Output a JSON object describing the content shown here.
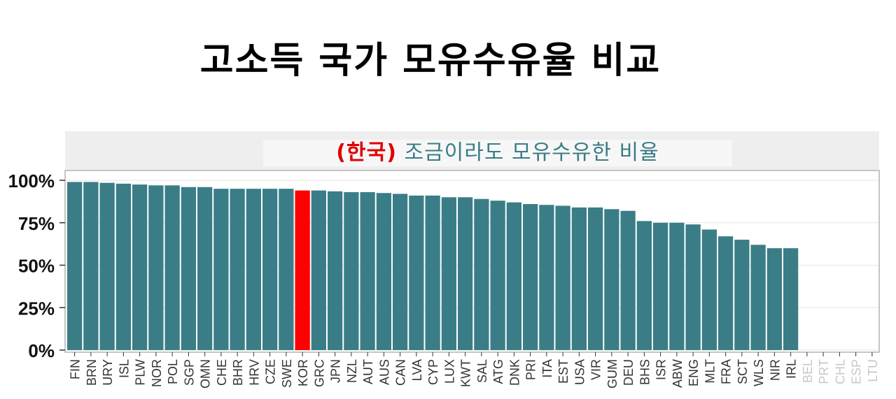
{
  "title": "고소득 국가 모유수유율 비교",
  "chart_data": {
    "type": "bar",
    "panel_title_prefix": "(한국)",
    "panel_title_rest": " 조금이라도 모유수유한 비율",
    "ylim": [
      0,
      1
    ],
    "yticks": [
      0,
      0.25,
      0.5,
      0.75,
      1.0
    ],
    "ytick_labels": [
      "0%",
      "25%",
      "50%",
      "75%",
      "100%"
    ],
    "grid": true,
    "categories": [
      "FIN",
      "BRN",
      "URY",
      "ISL",
      "PLW",
      "NOR",
      "POL",
      "SGP",
      "OMN",
      "CHE",
      "BHR",
      "HRV",
      "CZE",
      "SWE",
      "KOR",
      "GRC",
      "JPN",
      "NZL",
      "AUT",
      "AUS",
      "CAN",
      "LVA",
      "CYP",
      "LUX",
      "KWT",
      "SAL",
      "ATG",
      "DNK",
      "PRI",
      "ITA",
      "EST",
      "USA",
      "VIR",
      "GUM",
      "DEU",
      "BHS",
      "ISR",
      "ABW",
      "ENG",
      "MLT",
      "FRA",
      "SCT",
      "WLS",
      "NIR",
      "IRL",
      "BEL",
      "PRT",
      "CHL",
      "ESP",
      "LTU"
    ],
    "values": [
      0.99,
      0.99,
      0.985,
      0.98,
      0.975,
      0.97,
      0.97,
      0.96,
      0.96,
      0.95,
      0.95,
      0.95,
      0.95,
      0.95,
      0.94,
      0.94,
      0.935,
      0.93,
      0.93,
      0.925,
      0.92,
      0.91,
      0.91,
      0.9,
      0.9,
      0.89,
      0.88,
      0.87,
      0.86,
      0.855,
      0.85,
      0.84,
      0.84,
      0.83,
      0.82,
      0.76,
      0.75,
      0.75,
      0.74,
      0.71,
      0.67,
      0.65,
      0.62,
      0.6,
      0.6,
      null,
      null,
      null,
      null,
      null
    ],
    "highlight_category": "KOR",
    "colors": {
      "bar": "#3a7d87",
      "highlight": "#ff0000",
      "panel_strip": "#eeeeee",
      "panel_title_prefix": "#e00000",
      "panel_title_rest": "#3a7d87",
      "grid": "#e6e6e6",
      "label_active": "#333333",
      "label_missing": "#c8c8c8"
    }
  }
}
